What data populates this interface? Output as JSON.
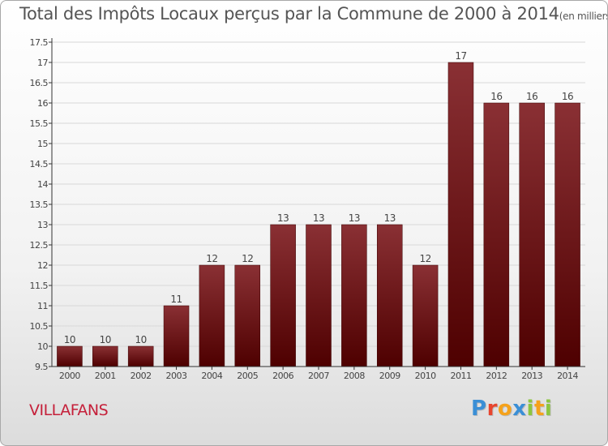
{
  "header": {
    "title": "Total des Impôts Locaux perçus par la Commune de 2000 à 2014",
    "unit": "(en milliers d'€)"
  },
  "footer": {
    "commune": "VILLAFANS",
    "logo": {
      "letters": [
        "P",
        "r",
        "o",
        "x",
        "i",
        "t",
        "i"
      ],
      "colors": [
        "#3a8fd6",
        "#e8452e",
        "#f5a21b",
        "#3a8fd6",
        "#8cc63f",
        "#f5a21b",
        "#8cc63f"
      ]
    }
  },
  "colors": {
    "bar_top": "#8a3034",
    "bar_bottom": "#4e0000",
    "axis": "#333333",
    "grid": "#d8d8d8",
    "text": "#444444"
  },
  "chart_data": {
    "type": "bar",
    "title": "Total des Impôts Locaux perçus par la Commune de 2000 à 2014",
    "xlabel": "",
    "ylabel": "",
    "categories": [
      "2000",
      "2001",
      "2002",
      "2003",
      "2004",
      "2005",
      "2006",
      "2007",
      "2008",
      "2009",
      "2010",
      "2011",
      "2012",
      "2013",
      "2014"
    ],
    "values": [
      10,
      10,
      10,
      11,
      12,
      12,
      13,
      13,
      13,
      13,
      12,
      17,
      16,
      16,
      16
    ],
    "ylim": [
      9.5,
      17.5
    ],
    "yticks": [
      "9.5",
      "10",
      "10.5",
      "11",
      "11.5",
      "12",
      "12.5",
      "13",
      "13.5",
      "14",
      "14.5",
      "15",
      "15.5",
      "16",
      "16.5",
      "17",
      "17.5"
    ],
    "grid": true
  }
}
